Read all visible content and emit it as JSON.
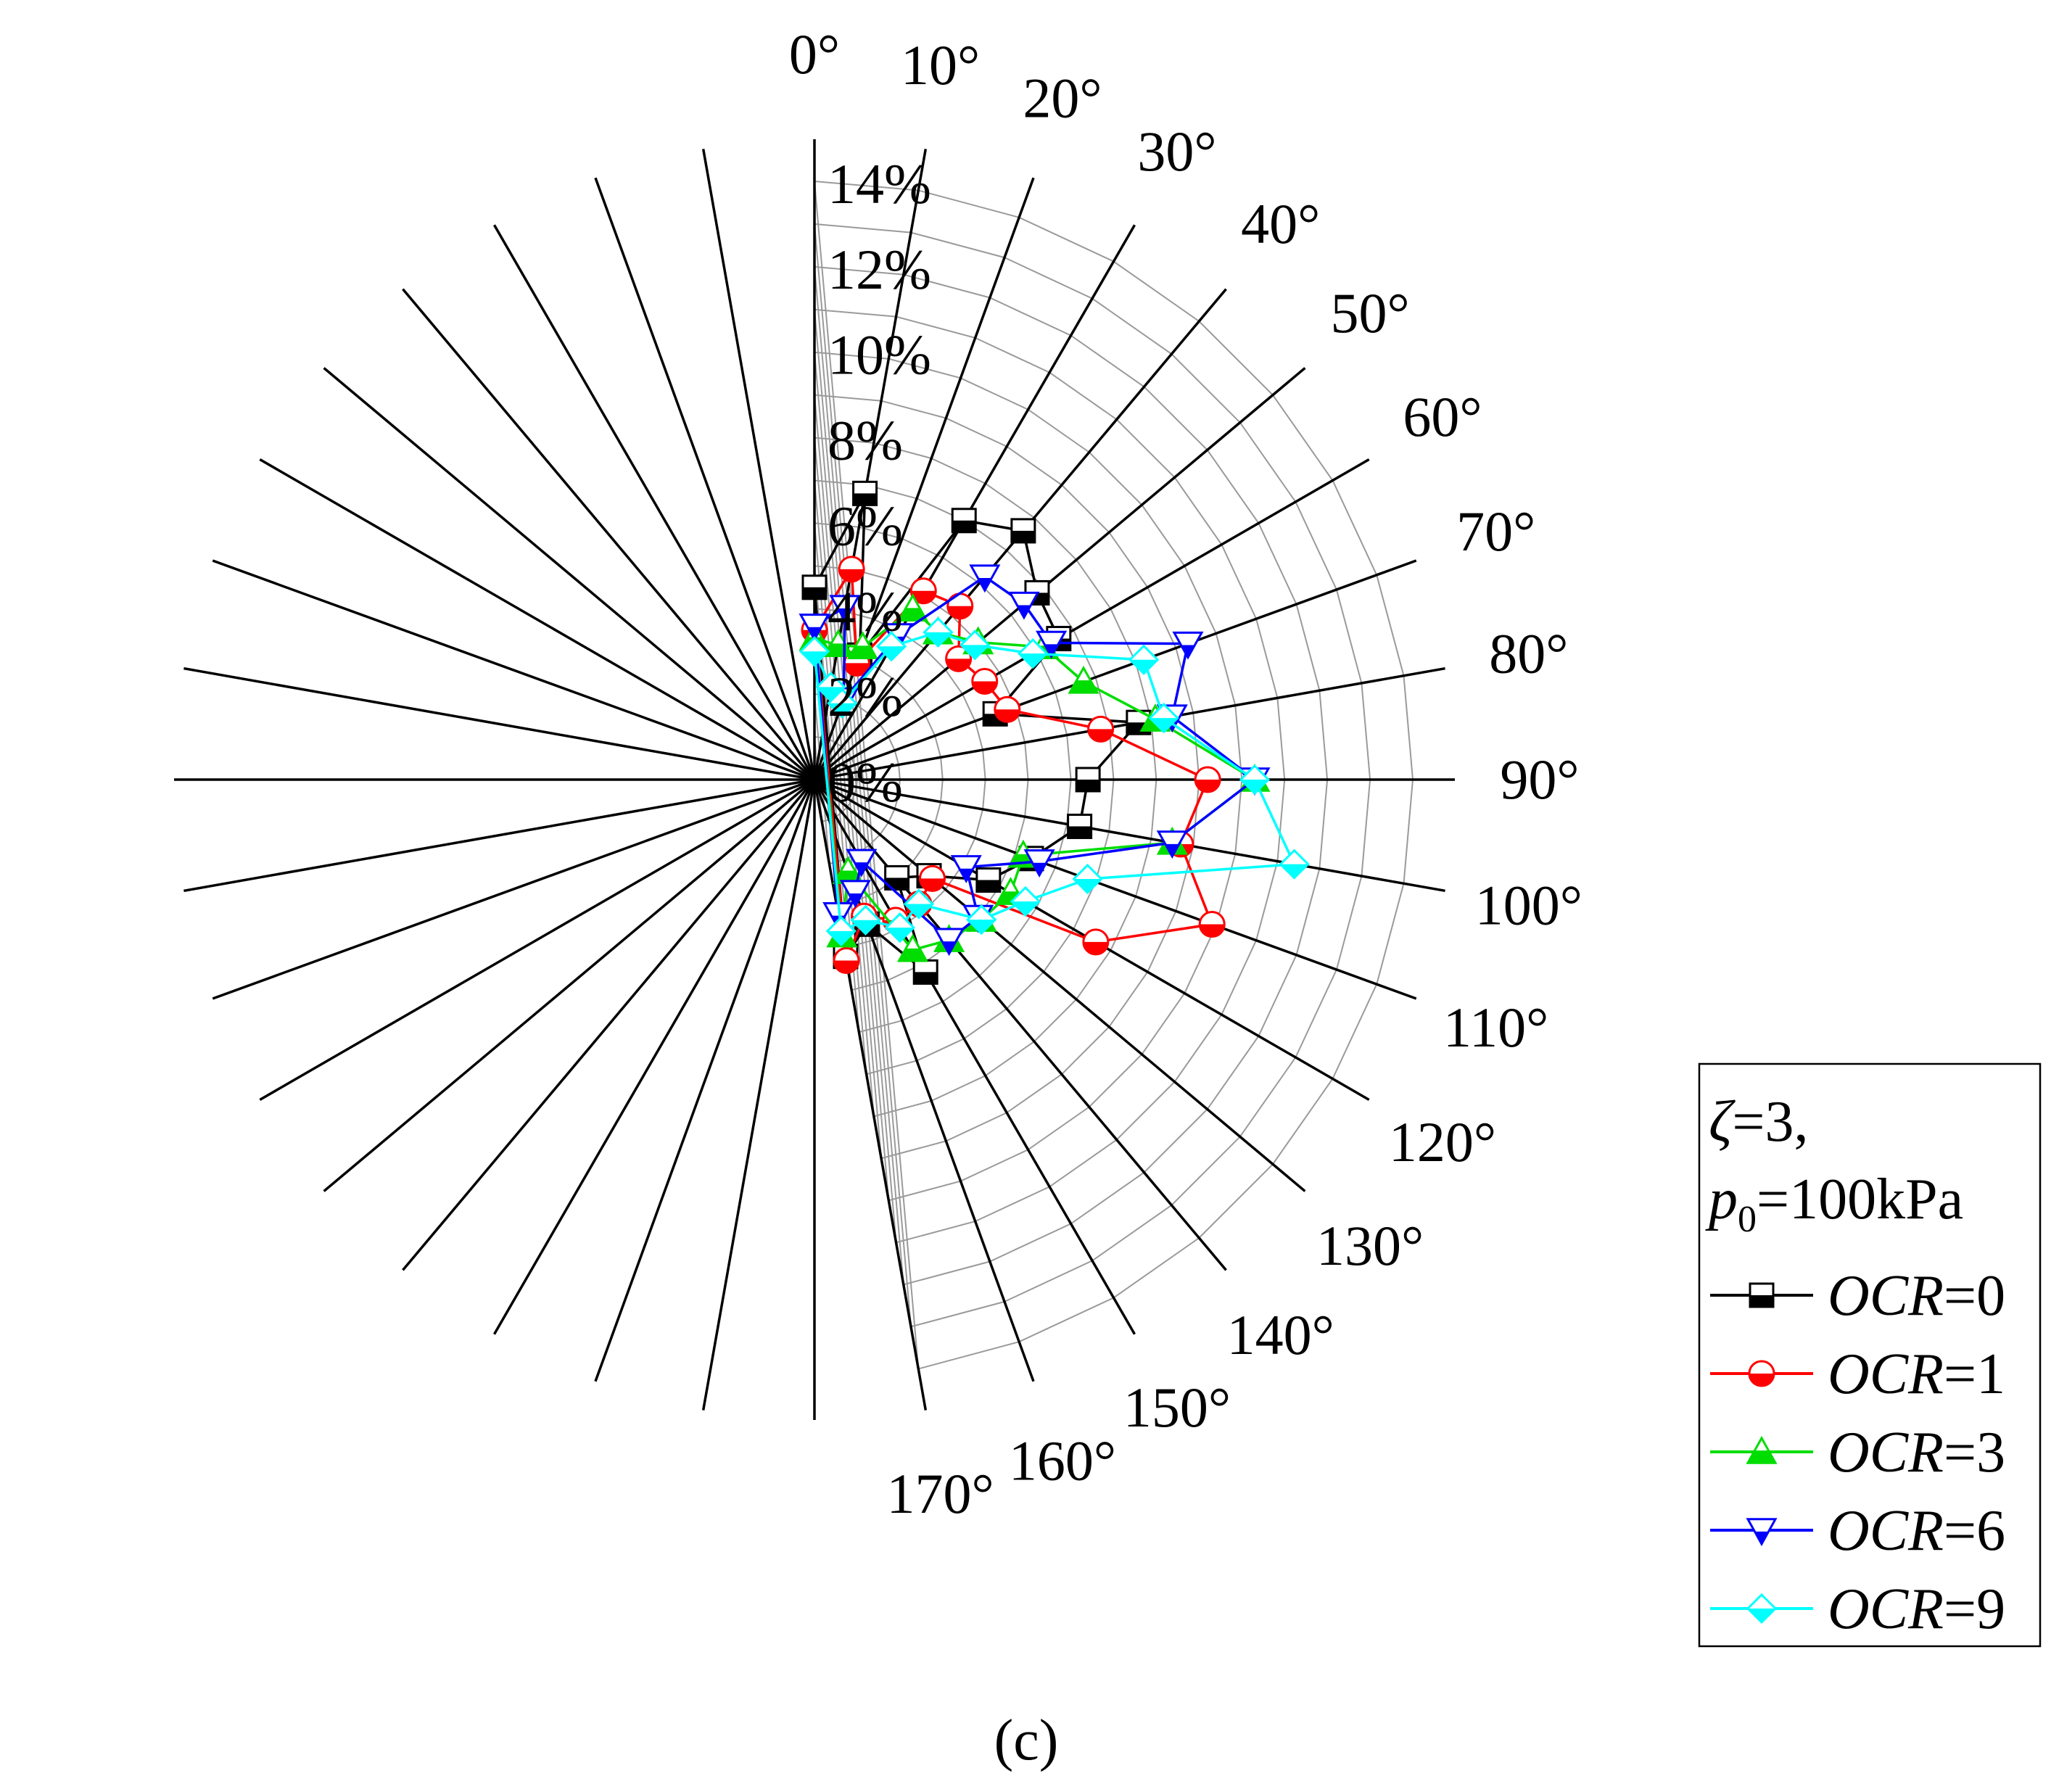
{
  "chart_data": {
    "type": "radar",
    "angular_unit": "°",
    "radial_unit": "%",
    "radial_range": [
      0,
      14
    ],
    "grid": true,
    "legend_position": "bottom-right",
    "panel_label": "(c)",
    "angle_labels": [
      "0°",
      "10°",
      "20°",
      "30°",
      "40°",
      "50°",
      "60°",
      "70°",
      "80°",
      "90°",
      "100°",
      "110°",
      "120°",
      "130°",
      "140°",
      "150°",
      "160°",
      "170°"
    ],
    "radial_tick_labels": [
      "0%",
      "2%",
      "4%",
      "6%",
      "8%",
      "10%",
      "12%",
      "14%"
    ],
    "angles": [
      0,
      10,
      20,
      30,
      40,
      50,
      60,
      70,
      80,
      90,
      100,
      110,
      120,
      130,
      140,
      150,
      160,
      170
    ],
    "legend_title": {
      "zeta": "ζ",
      "zeta_value": "=3,",
      "p_symbol": "p",
      "p_subscript": "0",
      "p_value": "=100kPa"
    },
    "series": [
      {
        "name": "OCR=0",
        "name_italic": "OCR",
        "name_value": "=0",
        "color": "#000000",
        "marker": "square-half",
        "values": [
          4.5,
          6.8,
          3.1,
          7.0,
          7.6,
          6.8,
          6.6,
          4.5,
          7.7,
          6.4,
          6.3,
          5.4,
          4.7,
          3.5,
          3.0,
          5.2,
          3.6,
          4.2
        ]
      },
      {
        "name": "OCR=1",
        "name_italic": "OCR",
        "name_value": "=1",
        "color": "#ff0000",
        "marker": "circle-half",
        "values": [
          3.5,
          5.0,
          2.9,
          5.1,
          5.3,
          4.4,
          4.6,
          4.8,
          6.8,
          9.2,
          8.7,
          9.9,
          7.6,
          3.6,
          3.8,
          3.8,
          3.4,
          4.3
        ]
      },
      {
        "name": "OCR=3",
        "name_italic": "OCR",
        "name_value": "=3",
        "color": "#00dd00",
        "marker": "triangle-up",
        "values": [
          3.3,
          3.2,
          3.3,
          4.6,
          4.5,
          5.0,
          6.2,
          6.7,
          8.1,
          10.3,
          8.5,
          5.2,
          5.3,
          5.1,
          4.9,
          4.6,
          2.3,
          3.7
        ]
      },
      {
        "name": "OCR=6",
        "name_italic": "OCR",
        "name_value": "=6",
        "color": "#0000ff",
        "marker": "triangle-down",
        "values": [
          3.6,
          4.1,
          2.0,
          3.9,
          6.2,
          6.4,
          6.4,
          9.3,
          8.5,
          10.3,
          8.5,
          5.6,
          4.1,
          5.0,
          4.9,
          2.2,
          2.8,
          3.2
        ]
      },
      {
        "name": "OCR=9",
        "name_italic": "OCR",
        "name_value": "=9",
        "color": "#00ffff",
        "marker": "diamond",
        "values": [
          3.0,
          2.2,
          1.9,
          3.6,
          4.5,
          4.9,
          5.9,
          8.2,
          8.3,
          10.3,
          11.4,
          6.8,
          5.7,
          5.1,
          3.8,
          4.0,
          3.5,
          3.6
        ]
      }
    ]
  }
}
